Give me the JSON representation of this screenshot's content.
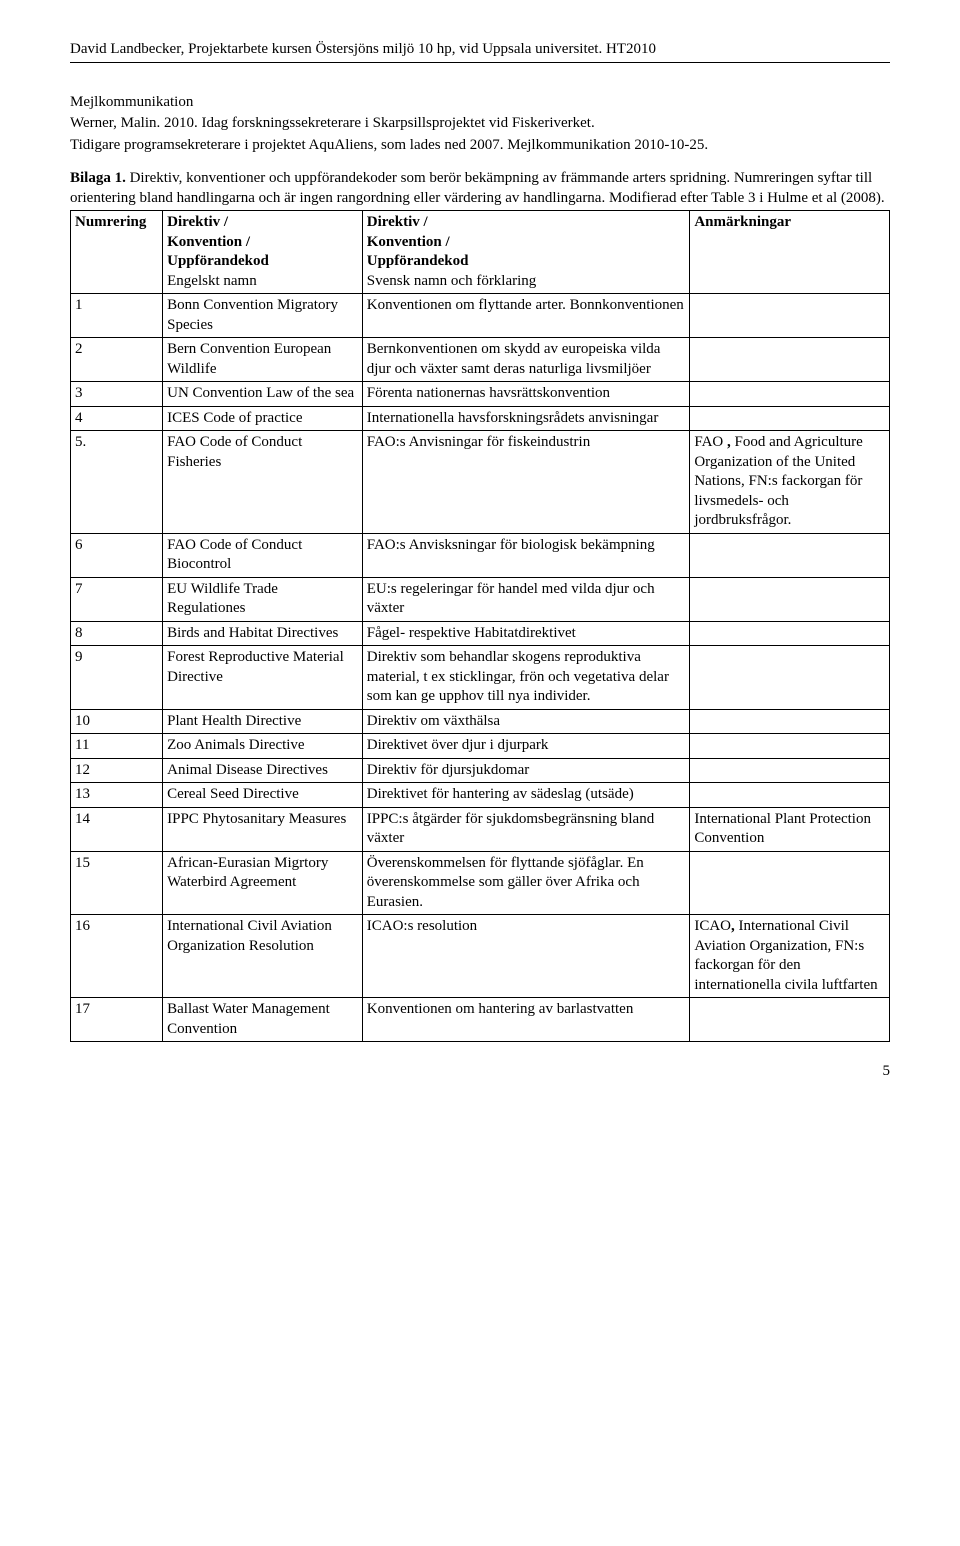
{
  "header": "David Landbecker, Projektarbete kursen Östersjöns miljö 10 hp, vid Uppsala universitet. HT2010",
  "p1": "Mejlkommunikation",
  "p2": "Werner, Malin. 2010. Idag forskningssekreterare i Skarpsillsprojektet vid Fiskeriverket.",
  "p3": "Tidigare programsekreterare i projektet AquAliens, som lades ned 2007. Mejlkommunikation 2010-10-25.",
  "bilaga_b": "Bilaga 1.",
  "bilaga_rest": " Direktiv, konventioner och uppförandekoder som berör bekämpning av främmande arters spridning. Numreringen syftar till orientering bland handlingarna och är ingen rangordning eller värdering av handlingarna. Modifierad efter Table 3 i Hulme et al (2008).",
  "th": {
    "c1": "Numrering",
    "c2a": "Direktiv /",
    "c2b": "Konvention /",
    "c2c": "Uppförandekod",
    "c2d": "Engelskt namn",
    "c3a": "Direktiv /",
    "c3b": "Konvention /",
    "c3c": "Uppförandekod",
    "c3d": "Svensk namn och förklaring",
    "c4": "Anmärkningar"
  },
  "rows": [
    {
      "n": "1",
      "en": "Bonn Convention Migratory Species",
      "sv": "Konventionen om flyttande arter. Bonnkonventionen",
      "an": ""
    },
    {
      "n": "2",
      "en": "Bern Convention European Wildlife",
      "sv": "Bernkonventionen om skydd av europeiska vilda djur och växter samt deras naturliga livsmiljöer",
      "an": ""
    },
    {
      "n": "3",
      "en": "UN Convention Law of the sea",
      "sv": "Förenta nationernas havsrättskonvention",
      "an": ""
    },
    {
      "n": "4",
      "en": "ICES Code of practice",
      "sv": "Internationella havsforskningsrådets anvisningar",
      "an": ""
    },
    {
      "n": "5.",
      "en": "FAO Code of Conduct Fisheries",
      "sv": "FAO:s Anvisningar för fiskeindustrin",
      "an_pre": "FAO ",
      "an_b": ",",
      "an_rest": " Food and Agriculture Organization of the United Nations, FN:s fackorgan för livsmedels- och jordbruksfrågor."
    },
    {
      "n": "6",
      "en": "FAO Code of Conduct Biocontrol",
      "sv": "FAO:s Anvisksningar för biologisk bekämpning",
      "an": ""
    },
    {
      "n": "7",
      "en": "EU Wildlife Trade Regulationes",
      "sv": "EU:s regeleringar för handel med vilda djur och växter",
      "an": ""
    },
    {
      "n": "8",
      "en": "Birds and Habitat Directives",
      "sv": "Fågel- respektive Habitatdirektivet",
      "an": ""
    },
    {
      "n": "9",
      "en": "Forest Reproductive Material Directive",
      "sv": "Direktiv som behandlar skogens reproduktiva material, t ex sticklingar, frön och vegetativa delar som kan ge upphov till nya individer.",
      "an": ""
    },
    {
      "n": "10",
      "en": "Plant Health Directive",
      "sv": "Direktiv om växthälsa",
      "an": ""
    },
    {
      "n": "11",
      "en": "Zoo Animals Directive",
      "sv": "Direktivet över djur i djurpark",
      "an": ""
    },
    {
      "n": "12",
      "en": "Animal Disease Directives",
      "sv": "Direktiv för djursjukdomar",
      "an": ""
    },
    {
      "n": "13",
      "en": "Cereal Seed Directive",
      "sv": "Direktivet för hantering av sädeslag (utsäde)",
      "an": ""
    },
    {
      "n": "14",
      "en": "IPPC Phytosanitary Measures",
      "sv": "IPPC:s åtgärder för sjukdomsbegränsning bland växter",
      "an": "International Plant Protection Convention"
    },
    {
      "n": "15",
      "en": "African-Eurasian Migrtory Waterbird Agreement",
      "sv": "Överenskommelsen för flyttande sjöfåglar. En överenskommelse som gäller över Afrika och Eurasien.",
      "an": ""
    },
    {
      "n": "16",
      "en": "International Civil Aviation Organization Resolution",
      "sv": "ICAO:s resolution",
      "an_pre": "ICAO",
      "an_b": ",",
      "an_rest": " International Civil Aviation Organization, FN:s fackorgan för den internationella civila luftfarten"
    },
    {
      "n": "17",
      "en": "Ballast Water Management Convention",
      "sv": "Konventionen om hantering av barlastvatten",
      "an": ""
    }
  ],
  "pagenum": "5"
}
